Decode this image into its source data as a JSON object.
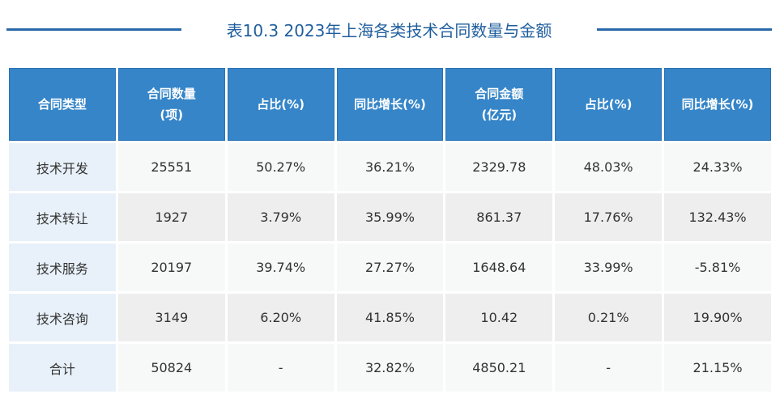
{
  "title": "表10.3  2023年上海各类技术合同数量与金额",
  "headers": [
    [
      "合同类型"
    ],
    [
      "合同数量",
      "(项)"
    ],
    [
      "占比(%)"
    ],
    [
      "同比增长(%)"
    ],
    [
      "合同金额",
      "(亿元)"
    ],
    [
      "占比(%)"
    ],
    [
      "同比增长(%)"
    ]
  ],
  "rows": [
    [
      "技术开发",
      "25551",
      "50.27%",
      "36.21%",
      "2329.78",
      "48.03%",
      "24.33%"
    ],
    [
      "技术转让",
      "1927",
      "3.79%",
      "35.99%",
      "861.37",
      "17.76%",
      "132.43%"
    ],
    [
      "技术服务",
      "20197",
      "39.74%",
      "27.27%",
      "1648.64",
      "33.99%",
      "-5.81%"
    ],
    [
      "技术咨询",
      "3149",
      "6.20%",
      "41.85%",
      "10.42",
      "0.21%",
      "19.90%"
    ],
    [
      "合计",
      "50824",
      "-",
      "32.82%",
      "4850.21",
      "-",
      "21.15%"
    ]
  ]
}
